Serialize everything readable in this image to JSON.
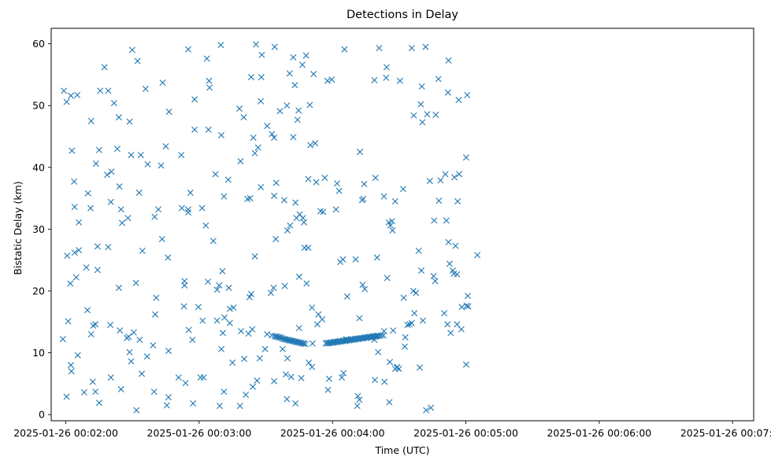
{
  "chart_data": {
    "type": "scatter",
    "title": "Detections in Delay",
    "xlabel": "Time (UTC)",
    "ylabel": "Bistatic Delay (km)",
    "x_unit": "minutes",
    "x_ticks": [
      {
        "value": 2,
        "label": "2025-01-26 00:02:00"
      },
      {
        "value": 3,
        "label": "2025-01-26 00:03:00"
      },
      {
        "value": 4,
        "label": "2025-01-26 00:04:00"
      },
      {
        "value": 5,
        "label": "2025-01-26 00:05:00"
      },
      {
        "value": 6,
        "label": "2025-01-26 00:06:00"
      },
      {
        "value": 7,
        "label": "2025-01-26 00:07:00"
      }
    ],
    "y_ticks": [
      0,
      10,
      20,
      30,
      40,
      50,
      60
    ],
    "xlim": [
      1.8903,
      7.1583
    ],
    "ylim": [
      -1.0,
      62.5
    ],
    "grid": false,
    "marker": "x",
    "color": "#1f77b4",
    "points": [
      [
        1.986,
        52.4
      ],
      [
        2.006,
        50.6
      ],
      [
        1.978,
        12.2
      ],
      [
        2.018,
        15.1
      ],
      [
        2.01,
        25.7
      ],
      [
        2.006,
        2.9
      ],
      [
        2.034,
        21.2
      ],
      [
        2.038,
        8.0
      ],
      [
        2.042,
        7.0
      ],
      [
        2.046,
        42.7
      ],
      [
        2.038,
        51.6
      ],
      [
        2.062,
        37.7
      ],
      [
        2.066,
        33.6
      ],
      [
        2.066,
        26.2
      ],
      [
        2.078,
        22.2
      ],
      [
        2.086,
        51.7
      ],
      [
        2.09,
        9.6
      ],
      [
        2.098,
        26.6
      ],
      [
        2.098,
        31.1
      ],
      [
        2.154,
        23.8
      ],
      [
        2.138,
        3.6
      ],
      [
        2.162,
        16.9
      ],
      [
        2.166,
        35.8
      ],
      [
        2.186,
        33.4
      ],
      [
        2.19,
        47.5
      ],
      [
        2.19,
        13.0
      ],
      [
        2.202,
        5.3
      ],
      [
        2.206,
        14.4
      ],
      [
        2.222,
        14.6
      ],
      [
        2.222,
        3.7
      ],
      [
        2.226,
        40.6
      ],
      [
        2.238,
        27.2
      ],
      [
        2.238,
        23.4
      ],
      [
        2.25,
        42.8
      ],
      [
        2.258,
        52.4
      ],
      [
        2.25,
        1.9
      ],
      [
        2.29,
        56.2
      ],
      [
        2.31,
        38.8
      ],
      [
        2.318,
        52.4
      ],
      [
        2.318,
        27.1
      ],
      [
        2.334,
        14.5
      ],
      [
        2.342,
        39.3
      ],
      [
        2.338,
        34.4
      ],
      [
        2.338,
        6.0
      ],
      [
        2.362,
        50.4
      ],
      [
        2.386,
        43.0
      ],
      [
        2.398,
        48.1
      ],
      [
        2.398,
        20.5
      ],
      [
        2.402,
        36.9
      ],
      [
        2.406,
        13.6
      ],
      [
        2.414,
        33.2
      ],
      [
        2.422,
        31.0
      ],
      [
        2.414,
        4.1
      ],
      [
        2.466,
        31.8
      ],
      [
        2.458,
        12.4
      ],
      [
        2.47,
        12.6
      ],
      [
        2.478,
        47.4
      ],
      [
        2.478,
        10.1
      ],
      [
        2.49,
        8.6
      ],
      [
        2.49,
        42.0
      ],
      [
        2.498,
        59.0
      ],
      [
        2.51,
        13.3
      ],
      [
        2.538,
        57.2
      ],
      [
        2.526,
        21.3
      ],
      [
        2.53,
        0.7
      ],
      [
        2.55,
        35.9
      ],
      [
        2.554,
        12.1
      ],
      [
        2.562,
        42.0
      ],
      [
        2.57,
        6.6
      ],
      [
        2.574,
        26.5
      ],
      [
        2.598,
        52.7
      ],
      [
        2.614,
        40.5
      ],
      [
        2.61,
        9.4
      ],
      [
        2.654,
        11.2
      ],
      [
        2.662,
        3.7
      ],
      [
        2.666,
        32.0
      ],
      [
        2.67,
        16.2
      ],
      [
        2.678,
        18.9
      ],
      [
        2.694,
        33.2
      ],
      [
        2.714,
        40.3
      ],
      [
        2.726,
        53.7
      ],
      [
        2.722,
        28.4
      ],
      [
        2.75,
        43.4
      ],
      [
        2.758,
        1.5
      ],
      [
        2.77,
        2.8
      ],
      [
        2.766,
        25.4
      ],
      [
        2.77,
        10.3
      ],
      [
        2.774,
        49.0
      ],
      [
        2.846,
        6.0
      ],
      [
        2.866,
        42.0
      ],
      [
        2.87,
        33.4
      ],
      [
        2.886,
        17.5
      ],
      [
        2.89,
        21.6
      ],
      [
        2.89,
        20.9
      ],
      [
        2.898,
        5.1
      ],
      [
        2.918,
        59.1
      ],
      [
        2.918,
        33.2
      ],
      [
        2.918,
        32.7
      ],
      [
        2.922,
        13.7
      ],
      [
        2.934,
        35.9
      ],
      [
        2.95,
        12.1
      ],
      [
        2.954,
        1.8
      ],
      [
        2.966,
        51.0
      ],
      [
        2.966,
        46.1
      ],
      [
        2.994,
        17.4
      ],
      [
        3.01,
        6.0
      ],
      [
        3.022,
        33.4
      ],
      [
        3.026,
        15.2
      ],
      [
        3.034,
        6.0
      ],
      [
        3.05,
        30.6
      ],
      [
        3.058,
        57.6
      ],
      [
        3.066,
        21.5
      ],
      [
        3.074,
        54.0
      ],
      [
        3.07,
        46.1
      ],
      [
        3.078,
        52.9
      ],
      [
        3.106,
        28.1
      ],
      [
        3.122,
        38.9
      ],
      [
        3.134,
        15.2
      ],
      [
        3.134,
        20.2
      ],
      [
        3.15,
        20.9
      ],
      [
        3.162,
        59.8
      ],
      [
        3.166,
        10.6
      ],
      [
        3.154,
        1.4
      ],
      [
        3.166,
        45.2
      ],
      [
        3.174,
        23.2
      ],
      [
        3.178,
        13.2
      ],
      [
        3.186,
        3.7
      ],
      [
        3.186,
        35.3
      ],
      [
        3.19,
        15.7
      ],
      [
        3.218,
        38.0
      ],
      [
        3.222,
        20.5
      ],
      [
        3.23,
        17.1
      ],
      [
        3.25,
        8.4
      ],
      [
        3.258,
        17.3
      ],
      [
        3.23,
        14.8
      ],
      [
        3.302,
        49.5
      ],
      [
        3.31,
        41.0
      ],
      [
        3.314,
        13.5
      ],
      [
        3.334,
        48.1
      ],
      [
        3.338,
        9.0
      ],
      [
        3.35,
        3.2
      ],
      [
        3.306,
        1.4
      ],
      [
        3.362,
        34.9
      ],
      [
        3.37,
        13.1
      ],
      [
        3.378,
        19.0
      ],
      [
        3.382,
        35.0
      ],
      [
        3.39,
        54.6
      ],
      [
        3.39,
        19.5
      ],
      [
        3.398,
        13.8
      ],
      [
        3.406,
        44.8
      ],
      [
        3.402,
        4.5
      ],
      [
        3.418,
        25.6
      ],
      [
        3.418,
        42.3
      ],
      [
        3.426,
        59.9
      ],
      [
        3.434,
        5.5
      ],
      [
        3.442,
        43.2
      ],
      [
        3.454,
        9.1
      ],
      [
        3.462,
        50.7
      ],
      [
        3.462,
        36.8
      ],
      [
        3.47,
        58.2
      ],
      [
        3.466,
        54.6
      ],
      [
        3.494,
        10.6
      ],
      [
        3.51,
        13.0
      ],
      [
        3.51,
        46.7
      ],
      [
        3.538,
        19.7
      ],
      [
        3.558,
        20.5
      ],
      [
        3.546,
        45.4
      ],
      [
        3.562,
        44.8
      ],
      [
        3.562,
        5.4
      ],
      [
        3.562,
        35.4
      ],
      [
        3.566,
        59.5
      ],
      [
        3.578,
        37.5
      ],
      [
        3.574,
        28.4
      ],
      [
        3.606,
        49.1
      ],
      [
        3.626,
        10.6
      ],
      [
        3.638,
        34.7
      ],
      [
        3.642,
        20.8
      ],
      [
        3.65,
        6.5
      ],
      [
        3.658,
        50.0
      ],
      [
        3.658,
        2.5
      ],
      [
        3.662,
        29.8
      ],
      [
        3.662,
        9.1
      ],
      [
        3.678,
        55.2
      ],
      [
        3.682,
        30.6
      ],
      [
        3.69,
        6.1
      ],
      [
        3.706,
        44.9
      ],
      [
        3.706,
        57.8
      ],
      [
        3.718,
        53.3
      ],
      [
        3.722,
        34.3
      ],
      [
        3.73,
        31.8
      ],
      [
        3.722,
        1.8
      ],
      [
        3.738,
        47.7
      ],
      [
        3.746,
        49.2
      ],
      [
        3.75,
        22.3
      ],
      [
        3.75,
        14.0
      ],
      [
        3.754,
        32.4
      ],
      [
        3.766,
        5.9
      ],
      [
        3.774,
        56.6
      ],
      [
        3.778,
        31.8
      ],
      [
        3.786,
        31.1
      ],
      [
        3.79,
        27.0
      ],
      [
        3.802,
        58.1
      ],
      [
        3.806,
        21.2
      ],
      [
        3.818,
        38.1
      ],
      [
        3.818,
        27.0
      ],
      [
        3.822,
        8.4
      ],
      [
        3.83,
        50.1
      ],
      [
        3.834,
        43.6
      ],
      [
        3.846,
        7.7
      ],
      [
        3.846,
        17.3
      ],
      [
        3.85,
        11.5
      ],
      [
        3.858,
        55.1
      ],
      [
        3.87,
        43.9
      ],
      [
        3.878,
        37.6
      ],
      [
        3.886,
        14.6
      ],
      [
        3.894,
        16.2
      ],
      [
        3.91,
        32.9
      ],
      [
        3.922,
        15.4
      ],
      [
        3.93,
        32.8
      ],
      [
        3.942,
        38.3
      ],
      [
        3.962,
        54.0
      ],
      [
        3.966,
        4.0
      ],
      [
        3.974,
        5.8
      ],
      [
        3.994,
        54.2
      ],
      [
        4.026,
        33.2
      ],
      [
        4.034,
        37.4
      ],
      [
        4.05,
        36.2
      ],
      [
        4.058,
        24.7
      ],
      [
        4.07,
        6.0
      ],
      [
        4.078,
        25.1
      ],
      [
        4.09,
        59.1
      ],
      [
        4.082,
        6.7
      ],
      [
        4.102,
        12.2
      ],
      [
        4.11,
        19.1
      ],
      [
        4.174,
        25.1
      ],
      [
        4.186,
        1.4
      ],
      [
        4.19,
        3.0
      ],
      [
        4.206,
        42.5
      ],
      [
        4.202,
        15.6
      ],
      [
        4.202,
        2.4
      ],
      [
        4.222,
        34.7
      ],
      [
        4.226,
        21.0
      ],
      [
        4.23,
        34.9
      ],
      [
        4.238,
        37.3
      ],
      [
        4.242,
        20.3
      ],
      [
        4.314,
        54.1
      ],
      [
        4.318,
        5.6
      ],
      [
        4.322,
        38.3
      ],
      [
        4.334,
        25.4
      ],
      [
        4.342,
        10.1
      ],
      [
        4.35,
        59.3
      ],
      [
        4.386,
        13.5
      ],
      [
        4.386,
        35.3
      ],
      [
        4.39,
        5.3
      ],
      [
        4.402,
        54.5
      ],
      [
        4.406,
        56.2
      ],
      [
        4.41,
        22.1
      ],
      [
        4.422,
        31.1
      ],
      [
        4.43,
        8.5
      ],
      [
        4.426,
        2.0
      ],
      [
        4.434,
        30.6
      ],
      [
        4.446,
        31.3
      ],
      [
        4.45,
        29.8
      ],
      [
        4.454,
        13.6
      ],
      [
        4.47,
        7.4
      ],
      [
        4.482,
        7.6
      ],
      [
        4.486,
        7.7
      ],
      [
        4.498,
        7.4
      ],
      [
        4.506,
        54.0
      ],
      [
        4.53,
        36.5
      ],
      [
        4.534,
        18.9
      ],
      [
        4.542,
        11.0
      ],
      [
        4.546,
        12.5
      ],
      [
        4.562,
        14.5
      ],
      [
        4.578,
        14.6
      ],
      [
        4.594,
        59.3
      ],
      [
        4.594,
        14.8
      ],
      [
        4.61,
        48.4
      ],
      [
        4.606,
        20.0
      ],
      [
        4.614,
        16.4
      ],
      [
        4.626,
        19.7
      ],
      [
        4.646,
        26.5
      ],
      [
        4.654,
        7.6
      ],
      [
        4.662,
        50.2
      ],
      [
        4.666,
        23.3
      ],
      [
        4.67,
        53.1
      ],
      [
        4.674,
        47.3
      ],
      [
        4.678,
        15.2
      ],
      [
        4.698,
        59.5
      ],
      [
        4.702,
        0.7
      ],
      [
        4.71,
        48.6
      ],
      [
        4.738,
        1.1
      ],
      [
        4.73,
        37.8
      ],
      [
        4.758,
        22.4
      ],
      [
        4.762,
        31.4
      ],
      [
        4.77,
        21.6
      ],
      [
        4.774,
        48.5
      ],
      [
        4.794,
        54.3
      ],
      [
        4.798,
        34.6
      ],
      [
        4.81,
        37.9
      ],
      [
        4.838,
        16.4
      ],
      [
        4.846,
        38.9
      ],
      [
        4.854,
        31.4
      ],
      [
        4.862,
        14.6
      ],
      [
        4.87,
        57.3
      ],
      [
        4.866,
        52.1
      ],
      [
        4.87,
        27.9
      ],
      [
        4.878,
        24.4
      ],
      [
        4.886,
        13.2
      ],
      [
        4.902,
        23.3
      ],
      [
        4.914,
        38.4
      ],
      [
        4.922,
        27.3
      ],
      [
        4.934,
        14.6
      ],
      [
        4.934,
        22.7
      ],
      [
        4.938,
        34.5
      ],
      [
        4.946,
        50.9
      ],
      [
        4.95,
        38.9
      ],
      [
        4.966,
        13.8
      ],
      [
        4.97,
        17.4
      ],
      [
        5.002,
        41.6
      ],
      [
        5.006,
        17.6
      ],
      [
        5.018,
        17.5
      ],
      [
        5.01,
        51.7
      ],
      [
        5.014,
        19.2
      ],
      [
        5.002,
        8.1
      ],
      [
        5.086,
        25.8
      ],
      [
        4.91,
        22.8
      ],
      [
        4.47,
        34.5
      ],
      [
        4.314,
        12.1
      ],
      [
        3.566,
        12.7
      ],
      [
        3.586,
        12.6
      ],
      [
        3.606,
        12.5
      ],
      [
        3.626,
        12.3
      ],
      [
        3.646,
        12.2
      ],
      [
        3.666,
        12.1
      ],
      [
        3.686,
        12.0
      ],
      [
        3.706,
        11.9
      ],
      [
        3.726,
        11.8
      ],
      [
        3.746,
        11.7
      ],
      [
        3.766,
        11.6
      ],
      [
        3.786,
        11.5
      ],
      [
        3.546,
        12.8
      ],
      [
        3.576,
        12.6
      ],
      [
        3.596,
        12.5
      ],
      [
        3.616,
        12.4
      ],
      [
        3.636,
        12.2
      ],
      [
        3.656,
        12.1
      ],
      [
        3.676,
        12.0
      ],
      [
        3.696,
        11.9
      ],
      [
        3.716,
        11.8
      ],
      [
        3.736,
        11.7
      ],
      [
        3.756,
        11.6
      ],
      [
        3.776,
        11.5
      ],
      [
        3.796,
        11.4
      ],
      [
        3.95,
        11.5
      ],
      [
        3.966,
        11.5
      ],
      [
        3.982,
        11.6
      ],
      [
        3.998,
        11.6
      ],
      [
        4.014,
        11.7
      ],
      [
        4.03,
        11.7
      ],
      [
        4.046,
        11.8
      ],
      [
        4.062,
        11.8
      ],
      [
        4.078,
        11.9
      ],
      [
        4.094,
        11.9
      ],
      [
        4.11,
        12.0
      ],
      [
        4.126,
        12.0
      ],
      [
        4.142,
        12.1
      ],
      [
        4.158,
        12.1
      ],
      [
        4.174,
        12.2
      ],
      [
        4.19,
        12.2
      ],
      [
        4.206,
        12.3
      ],
      [
        4.222,
        12.3
      ],
      [
        4.238,
        12.4
      ],
      [
        4.254,
        12.4
      ],
      [
        4.27,
        12.5
      ],
      [
        4.286,
        12.5
      ],
      [
        4.302,
        12.6
      ],
      [
        4.318,
        12.6
      ],
      [
        4.334,
        12.7
      ],
      [
        4.35,
        12.7
      ],
      [
        4.366,
        12.8
      ],
      [
        4.382,
        12.8
      ],
      [
        3.958,
        11.6
      ],
      [
        3.974,
        11.6
      ],
      [
        3.99,
        11.7
      ],
      [
        4.006,
        11.7
      ],
      [
        4.022,
        11.8
      ],
      [
        4.038,
        11.8
      ],
      [
        4.054,
        11.9
      ],
      [
        4.07,
        11.9
      ],
      [
        4.086,
        12.0
      ],
      [
        4.102,
        12.0
      ],
      [
        4.118,
        12.1
      ],
      [
        4.134,
        12.1
      ],
      [
        4.15,
        12.2
      ],
      [
        4.166,
        12.2
      ],
      [
        4.182,
        12.3
      ],
      [
        4.198,
        12.3
      ],
      [
        4.214,
        12.4
      ],
      [
        4.23,
        12.4
      ],
      [
        4.246,
        12.5
      ],
      [
        4.262,
        12.5
      ],
      [
        4.278,
        12.6
      ],
      [
        4.294,
        12.6
      ],
      [
        4.31,
        12.7
      ],
      [
        4.326,
        12.7
      ],
      [
        4.342,
        12.8
      ]
    ]
  }
}
